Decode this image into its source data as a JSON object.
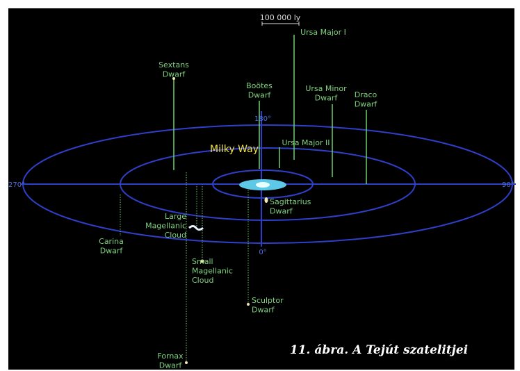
{
  "scale_label": "100 000 ly",
  "center_label": "Milky Way",
  "degrees": {
    "left": "270°",
    "right": "90°",
    "top": "180°",
    "bottom": "0°"
  },
  "satellites": [
    {
      "lines": [
        "Ursa Major I"
      ]
    },
    {
      "lines": [
        "Sextans",
        "Dwarf"
      ]
    },
    {
      "lines": [
        "Boötes",
        "Dwarf"
      ]
    },
    {
      "lines": [
        "Ursa Minor",
        "Dwarf"
      ]
    },
    {
      "lines": [
        "Draco",
        "Dwarf"
      ]
    },
    {
      "lines": [
        "Ursa Major II"
      ]
    },
    {
      "lines": [
        "Sagittarius",
        "Dwarf"
      ]
    },
    {
      "lines": [
        "Large",
        "Magellanic",
        "Cloud"
      ]
    },
    {
      "lines": [
        "Carina",
        "Dwarf"
      ]
    },
    {
      "lines": [
        "Small",
        "Magellanic",
        "Cloud"
      ]
    },
    {
      "lines": [
        "Sculptor",
        "Dwarf"
      ]
    },
    {
      "lines": [
        "Fornax",
        "Dwarf"
      ]
    }
  ],
  "caption": "11. ábra. A Tejút szatelitjei"
}
